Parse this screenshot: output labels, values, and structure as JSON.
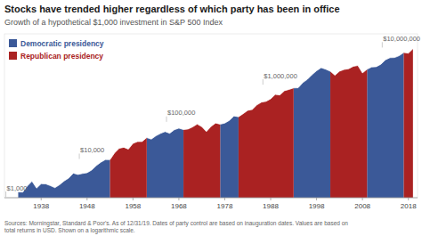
{
  "chart_data": {
    "type": "area",
    "title": "Stocks have trended higher regardless of which party has been in office",
    "subtitle": "Growth of a hypothetical $1,000 investment in S&P 500 Index",
    "footnote": "Sources: Morningstar, Standard & Poor's. As of 12/31/19. Dates of party control are based on inauguration dates. Values are based on\ntotal returns in USD. Shown on a logarithmic scale.",
    "log": "y",
    "grid": false,
    "legend": "upper left",
    "tick_labels": "x",
    "xlim": [
      1930,
      2020
    ],
    "xticks": [
      1938,
      1948,
      1958,
      1968,
      1978,
      1988,
      1998,
      2008,
      2018
    ],
    "ylim": [
      700,
      18000000
    ],
    "x": [
      1933,
      1934,
      1935,
      1936,
      1937,
      1938,
      1939,
      1940,
      1941,
      1942,
      1943,
      1944,
      1945,
      1946,
      1947,
      1948,
      1949,
      1950,
      1951,
      1952,
      1953,
      1954,
      1955,
      1956,
      1957,
      1958,
      1959,
      1960,
      1961,
      1962,
      1963,
      1964,
      1965,
      1966,
      1967,
      1968,
      1969,
      1970,
      1971,
      1972,
      1973,
      1974,
      1975,
      1976,
      1977,
      1978,
      1979,
      1980,
      1981,
      1982,
      1983,
      1984,
      1985,
      1986,
      1987,
      1988,
      1989,
      1990,
      1991,
      1992,
      1993,
      1994,
      1995,
      1996,
      1997,
      1998,
      1999,
      2000,
      2001,
      2002,
      2003,
      2004,
      2005,
      2006,
      2007,
      2008,
      2009,
      2010,
      2011,
      2012,
      2013,
      2014,
      2015,
      2016,
      2017,
      2018,
      2019
    ],
    "series": [
      {
        "name": "Democratic presidency",
        "color": "#3b5998",
        "values": [
          1000,
          990,
          1455.3,
          1950.1,
          1267.57,
          1660.51,
          1643.91,
          1479.52,
          1301.97,
          1562.37,
          1968.58,
          2362.3,
          3212.73,
          2955.71,
          3133.05,
          3289.71,
          3881.85,
          5085.23,
          6305.69,
          7440.71,
          7366.3,
          null,
          null,
          null,
          null,
          null,
          null,
          null,
          28960.93,
          26354.44,
          32415.97,
          37602.52,
          42114.82,
          37903.34,
          47000.14,
          52170.16,
          47474.84,
          null,
          null,
          null,
          null,
          null,
          null,
          null,
          66561.72,
          71221.04,
          84040.83,
          110933.9,
          105387.2,
          null,
          null,
          null,
          null,
          null,
          null,
          null,
          null,
          null,
          null,
          null,
          629626.64,
          635922.91,
          871214.39,
          1071593.69,
          1425219.61,
          1824281.11,
          2207380.14,
          2008715.93,
          1767670.01,
          null,
          null,
          null,
          null,
          null,
          null,
          null,
          2004269.74,
          2304910.2,
          2351008.4,
          2727169.74,
          3599864.06,
          4103845.03,
          4144883.48,
          4642269.5,
          5663568.79,
          null,
          null
        ]
      },
      {
        "name": "Republican presidency",
        "color": "#aa2222",
        "values": [
          null,
          null,
          null,
          null,
          null,
          null,
          null,
          null,
          null,
          null,
          null,
          null,
          null,
          null,
          null,
          null,
          null,
          null,
          null,
          null,
          7366.3,
          11270.44,
          14876.98,
          15918.37,
          14167.35,
          20259.31,
          22690.43,
          22803.88,
          28960.93,
          null,
          null,
          null,
          null,
          null,
          null,
          null,
          47474.84,
          49373.84,
          56286.18,
          66980.55,
          56933.47,
          42130.77,
          57719.15,
          71571.74,
          66561.72,
          null,
          null,
          null,
          105387.2,
          127518.51,
          156847.77,
          166258.64,
          219461.4,
          261159.07,
          274217.02,
          320833.92,
          420292.43,
          407683.66,
          529988.76,
          572387.86,
          629626.64,
          null,
          null,
          null,
          null,
          null,
          null,
          null,
          1767670.01,
          1378782.61,
          1778629.57,
          1974278.82,
          2072992.76,
          2404671.6,
          2524905.18,
          1590690.27,
          2004269.74,
          null,
          null,
          null,
          null,
          null,
          null,
          null,
          5663568.79,
          5437026.04,
          7122504.11
        ]
      }
    ],
    "annotations": [
      {
        "x": 1930.5,
        "y": 1050,
        "text": "$1,000"
      },
      {
        "x": 1946.5,
        "y": 11000,
        "text": "$10,000"
      },
      {
        "x": 1965.5,
        "y": 110000,
        "text": "$100,000"
      },
      {
        "x": 1986.5,
        "y": 1100000,
        "text": "$1,000,000"
      },
      {
        "x": 2012.5,
        "y": 11000000,
        "text": "$10,000,000"
      }
    ]
  }
}
